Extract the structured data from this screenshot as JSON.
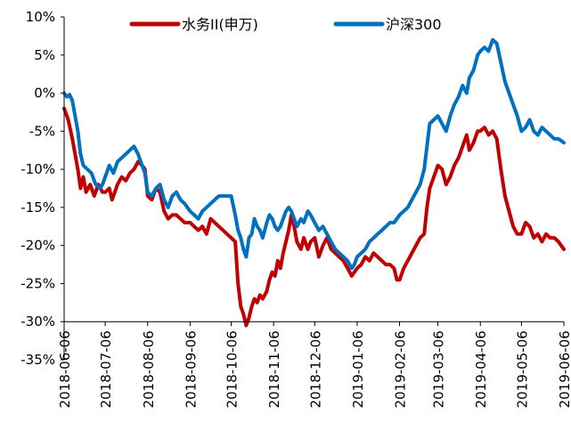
{
  "chart_data": {
    "type": "line",
    "title": "",
    "xlabel": "",
    "ylabel": "",
    "ylim": [
      -35,
      10
    ],
    "y_tick_values": [
      10,
      5,
      0,
      -5,
      -10,
      -15,
      -20,
      -25,
      -30,
      -35
    ],
    "y_tick_labels": [
      "10%",
      "5%",
      "0%",
      "-5%",
      "-10%",
      "-15%",
      "-20%",
      "-25%",
      "-30%",
      "-35%"
    ],
    "x_ticks": [
      "2018-06-06",
      "2018-07-06",
      "2018-08-06",
      "2018-09-06",
      "2018-10-06",
      "2018-11-06",
      "2018-12-06",
      "2019-01-06",
      "2019-02-06",
      "2019-03-06",
      "2019-04-06",
      "2019-05-06",
      "2019-06-06"
    ],
    "xlim": [
      "2018-06-06",
      "2019-06-06"
    ],
    "grid": false,
    "legend_position": "top",
    "series": [
      {
        "name": "水务II(申万)",
        "color": "#C00000",
        "points": [
          [
            "2018-06-06",
            -2.0
          ],
          [
            "2018-06-09",
            -3.5
          ],
          [
            "2018-06-12",
            -6.0
          ],
          [
            "2018-06-14",
            -8.0
          ],
          [
            "2018-06-16",
            -10.0
          ],
          [
            "2018-06-18",
            -12.5
          ],
          [
            "2018-06-20",
            -11.0
          ],
          [
            "2018-06-22",
            -13.0
          ],
          [
            "2018-06-25",
            -12.0
          ],
          [
            "2018-06-28",
            -13.5
          ],
          [
            "2018-07-01",
            -12.0
          ],
          [
            "2018-07-04",
            -13.0
          ],
          [
            "2018-07-06",
            -13.0
          ],
          [
            "2018-07-09",
            -12.5
          ],
          [
            "2018-07-11",
            -14.0
          ],
          [
            "2018-07-13",
            -13.0
          ],
          [
            "2018-07-15",
            -12.0
          ],
          [
            "2018-07-18",
            -11.0
          ],
          [
            "2018-07-21",
            -11.5
          ],
          [
            "2018-07-24",
            -10.5
          ],
          [
            "2018-07-27",
            -10.0
          ],
          [
            "2018-07-30",
            -9.0
          ],
          [
            "2018-08-02",
            -9.5
          ],
          [
            "2018-08-04",
            -10.0
          ],
          [
            "2018-08-06",
            -13.5
          ],
          [
            "2018-08-09",
            -14.0
          ],
          [
            "2018-08-12",
            -12.5
          ],
          [
            "2018-08-15",
            -13.0
          ],
          [
            "2018-08-18",
            -15.5
          ],
          [
            "2018-08-21",
            -16.5
          ],
          [
            "2018-08-24",
            -16.0
          ],
          [
            "2018-08-27",
            -16.0
          ],
          [
            "2018-08-30",
            -16.5
          ],
          [
            "2018-09-02",
            -17.0
          ],
          [
            "2018-09-04",
            -17.0
          ],
          [
            "2018-09-06",
            -17.0
          ],
          [
            "2018-09-09",
            -17.5
          ],
          [
            "2018-09-12",
            -18.0
          ],
          [
            "2018-09-15",
            -17.5
          ],
          [
            "2018-09-18",
            -18.5
          ],
          [
            "2018-09-21",
            -16.5
          ],
          [
            "2018-09-24",
            -17.0
          ],
          [
            "2018-09-27",
            -17.5
          ],
          [
            "2018-09-30",
            -18.0
          ],
          [
            "2018-10-03",
            -18.5
          ],
          [
            "2018-10-06",
            -19.0
          ],
          [
            "2018-10-09",
            -19.5
          ],
          [
            "2018-10-11",
            -25.0
          ],
          [
            "2018-10-13",
            -28.0
          ],
          [
            "2018-10-15",
            -29.0
          ],
          [
            "2018-10-17",
            -30.5
          ],
          [
            "2018-10-19",
            -29.5
          ],
          [
            "2018-10-21",
            -28.0
          ],
          [
            "2018-10-23",
            -27.0
          ],
          [
            "2018-10-25",
            -27.5
          ],
          [
            "2018-10-27",
            -26.5
          ],
          [
            "2018-10-29",
            -27.0
          ],
          [
            "2018-11-01",
            -26.0
          ],
          [
            "2018-11-03",
            -24.5
          ],
          [
            "2018-11-05",
            -23.5
          ],
          [
            "2018-11-07",
            -24.0
          ],
          [
            "2018-11-09",
            -22.0
          ],
          [
            "2018-11-11",
            -23.0
          ],
          [
            "2018-11-13",
            -21.0
          ],
          [
            "2018-11-15",
            -19.5
          ],
          [
            "2018-11-17",
            -18.0
          ],
          [
            "2018-11-19",
            -16.0
          ],
          [
            "2018-11-21",
            -17.5
          ],
          [
            "2018-11-23",
            -19.5
          ],
          [
            "2018-11-26",
            -20.5
          ],
          [
            "2018-11-28",
            -19.0
          ],
          [
            "2018-12-01",
            -20.5
          ],
          [
            "2018-12-03",
            -19.5
          ],
          [
            "2018-12-06",
            -19.0
          ],
          [
            "2018-12-09",
            -21.5
          ],
          [
            "2018-12-12",
            -20.0
          ],
          [
            "2018-12-15",
            -19.0
          ],
          [
            "2018-12-18",
            -20.5
          ],
          [
            "2018-12-21",
            -21.0
          ],
          [
            "2018-12-24",
            -21.5
          ],
          [
            "2018-12-27",
            -22.0
          ],
          [
            "2018-12-30",
            -23.0
          ],
          [
            "2019-01-02",
            -24.0
          ],
          [
            "2019-01-04",
            -23.5
          ],
          [
            "2019-01-06",
            -23.0
          ],
          [
            "2019-01-09",
            -22.5
          ],
          [
            "2019-01-12",
            -21.5
          ],
          [
            "2019-01-15",
            -22.0
          ],
          [
            "2019-01-18",
            -21.0
          ],
          [
            "2019-01-21",
            -21.5
          ],
          [
            "2019-01-24",
            -22.0
          ],
          [
            "2019-01-27",
            -22.5
          ],
          [
            "2019-01-30",
            -22.5
          ],
          [
            "2019-02-02",
            -23.0
          ],
          [
            "2019-02-04",
            -24.5
          ],
          [
            "2019-02-06",
            -24.5
          ],
          [
            "2019-02-09",
            -23.0
          ],
          [
            "2019-02-12",
            -22.0
          ],
          [
            "2019-02-15",
            -21.0
          ],
          [
            "2019-02-18",
            -20.0
          ],
          [
            "2019-02-21",
            -19.0
          ],
          [
            "2019-02-24",
            -18.5
          ],
          [
            "2019-02-26",
            -15.0
          ],
          [
            "2019-02-28",
            -12.5
          ],
          [
            "2019-03-03",
            -11.0
          ],
          [
            "2019-03-06",
            -9.5
          ],
          [
            "2019-03-09",
            -10.0
          ],
          [
            "2019-03-12",
            -12.0
          ],
          [
            "2019-03-15",
            -11.0
          ],
          [
            "2019-03-18",
            -9.5
          ],
          [
            "2019-03-21",
            -8.5
          ],
          [
            "2019-03-24",
            -7.0
          ],
          [
            "2019-03-27",
            -5.5
          ],
          [
            "2019-03-29",
            -7.5
          ],
          [
            "2019-04-01",
            -6.5
          ],
          [
            "2019-04-04",
            -5.0
          ],
          [
            "2019-04-06",
            -5.0
          ],
          [
            "2019-04-09",
            -4.5
          ],
          [
            "2019-04-12",
            -5.5
          ],
          [
            "2019-04-15",
            -5.0
          ],
          [
            "2019-04-18",
            -6.0
          ],
          [
            "2019-04-21",
            -10.0
          ],
          [
            "2019-04-24",
            -13.5
          ],
          [
            "2019-04-27",
            -15.5
          ],
          [
            "2019-04-30",
            -17.5
          ],
          [
            "2019-05-03",
            -18.5
          ],
          [
            "2019-05-06",
            -18.5
          ],
          [
            "2019-05-09",
            -17.0
          ],
          [
            "2019-05-12",
            -17.5
          ],
          [
            "2019-05-15",
            -19.0
          ],
          [
            "2019-05-18",
            -18.5
          ],
          [
            "2019-05-21",
            -19.5
          ],
          [
            "2019-05-24",
            -18.5
          ],
          [
            "2019-05-27",
            -19.0
          ],
          [
            "2019-05-30",
            -19.0
          ],
          [
            "2019-06-02",
            -19.5
          ],
          [
            "2019-06-06",
            -20.5
          ]
        ]
      },
      {
        "name": "沪深300",
        "color": "#0070C0",
        "points": [
          [
            "2018-06-06",
            0.0
          ],
          [
            "2018-06-08",
            -0.5
          ],
          [
            "2018-06-10",
            -0.2
          ],
          [
            "2018-06-12",
            -1.0
          ],
          [
            "2018-06-14",
            -3.0
          ],
          [
            "2018-06-16",
            -5.0
          ],
          [
            "2018-06-18",
            -8.0
          ],
          [
            "2018-06-20",
            -9.5
          ],
          [
            "2018-06-23",
            -10.0
          ],
          [
            "2018-06-26",
            -10.5
          ],
          [
            "2018-06-29",
            -12.0
          ],
          [
            "2018-07-02",
            -12.5
          ],
          [
            "2018-07-04",
            -12.0
          ],
          [
            "2018-07-06",
            -11.0
          ],
          [
            "2018-07-09",
            -9.5
          ],
          [
            "2018-07-12",
            -10.5
          ],
          [
            "2018-07-15",
            -9.0
          ],
          [
            "2018-07-18",
            -8.5
          ],
          [
            "2018-07-21",
            -8.0
          ],
          [
            "2018-07-24",
            -7.5
          ],
          [
            "2018-07-27",
            -7.0
          ],
          [
            "2018-07-30",
            -8.0
          ],
          [
            "2018-08-02",
            -9.5
          ],
          [
            "2018-08-04",
            -10.5
          ],
          [
            "2018-08-06",
            -13.0
          ],
          [
            "2018-08-09",
            -13.5
          ],
          [
            "2018-08-12",
            -12.5
          ],
          [
            "2018-08-15",
            -12.0
          ],
          [
            "2018-08-18",
            -14.0
          ],
          [
            "2018-08-21",
            -15.0
          ],
          [
            "2018-08-24",
            -13.5
          ],
          [
            "2018-08-27",
            -13.0
          ],
          [
            "2018-08-30",
            -14.0
          ],
          [
            "2018-09-02",
            -14.5
          ],
          [
            "2018-09-04",
            -15.0
          ],
          [
            "2018-09-06",
            -15.5
          ],
          [
            "2018-09-09",
            -16.0
          ],
          [
            "2018-09-12",
            -16.5
          ],
          [
            "2018-09-15",
            -15.5
          ],
          [
            "2018-09-18",
            -15.0
          ],
          [
            "2018-09-21",
            -14.5
          ],
          [
            "2018-09-24",
            -14.0
          ],
          [
            "2018-09-27",
            -13.5
          ],
          [
            "2018-09-30",
            -13.5
          ],
          [
            "2018-10-03",
            -13.5
          ],
          [
            "2018-10-06",
            -13.5
          ],
          [
            "2018-10-09",
            -16.0
          ],
          [
            "2018-10-11",
            -18.0
          ],
          [
            "2018-10-13",
            -19.0
          ],
          [
            "2018-10-15",
            -20.5
          ],
          [
            "2018-10-17",
            -21.5
          ],
          [
            "2018-10-19",
            -19.0
          ],
          [
            "2018-10-21",
            -18.5
          ],
          [
            "2018-10-23",
            -16.5
          ],
          [
            "2018-10-25",
            -17.5
          ],
          [
            "2018-10-27",
            -18.0
          ],
          [
            "2018-10-29",
            -19.0
          ],
          [
            "2018-11-01",
            -17.0
          ],
          [
            "2018-11-03",
            -16.0
          ],
          [
            "2018-11-05",
            -16.5
          ],
          [
            "2018-11-07",
            -17.5
          ],
          [
            "2018-11-09",
            -18.0
          ],
          [
            "2018-11-11",
            -17.5
          ],
          [
            "2018-11-13",
            -16.5
          ],
          [
            "2018-11-15",
            -15.5
          ],
          [
            "2018-11-17",
            -15.0
          ],
          [
            "2018-11-19",
            -15.5
          ],
          [
            "2018-11-21",
            -16.5
          ],
          [
            "2018-11-23",
            -17.5
          ],
          [
            "2018-11-26",
            -16.5
          ],
          [
            "2018-11-28",
            -17.0
          ],
          [
            "2018-12-01",
            -15.5
          ],
          [
            "2018-12-03",
            -16.0
          ],
          [
            "2018-12-06",
            -17.0
          ],
          [
            "2018-12-09",
            -18.0
          ],
          [
            "2018-12-12",
            -17.5
          ],
          [
            "2018-12-15",
            -18.5
          ],
          [
            "2018-12-18",
            -19.5
          ],
          [
            "2018-12-21",
            -20.5
          ],
          [
            "2018-12-24",
            -21.0
          ],
          [
            "2018-12-27",
            -21.5
          ],
          [
            "2018-12-30",
            -22.0
          ],
          [
            "2019-01-02",
            -23.0
          ],
          [
            "2019-01-04",
            -22.5
          ],
          [
            "2019-01-06",
            -21.5
          ],
          [
            "2019-01-09",
            -21.0
          ],
          [
            "2019-01-12",
            -20.5
          ],
          [
            "2019-01-15",
            -19.5
          ],
          [
            "2019-01-18",
            -19.0
          ],
          [
            "2019-01-21",
            -18.5
          ],
          [
            "2019-01-24",
            -18.0
          ],
          [
            "2019-01-27",
            -17.5
          ],
          [
            "2019-01-30",
            -17.0
          ],
          [
            "2019-02-02",
            -17.0
          ],
          [
            "2019-02-04",
            -16.5
          ],
          [
            "2019-02-06",
            -16.0
          ],
          [
            "2019-02-09",
            -15.5
          ],
          [
            "2019-02-12",
            -15.0
          ],
          [
            "2019-02-15",
            -14.0
          ],
          [
            "2019-02-18",
            -13.0
          ],
          [
            "2019-02-21",
            -12.0
          ],
          [
            "2019-02-24",
            -10.0
          ],
          [
            "2019-02-26",
            -7.0
          ],
          [
            "2019-02-28",
            -4.0
          ],
          [
            "2019-03-03",
            -3.5
          ],
          [
            "2019-03-06",
            -3.0
          ],
          [
            "2019-03-09",
            -4.0
          ],
          [
            "2019-03-12",
            -5.0
          ],
          [
            "2019-03-15",
            -3.0
          ],
          [
            "2019-03-18",
            -1.5
          ],
          [
            "2019-03-21",
            -0.5
          ],
          [
            "2019-03-24",
            1.0
          ],
          [
            "2019-03-27",
            0.0
          ],
          [
            "2019-03-29",
            2.0
          ],
          [
            "2019-04-01",
            3.0
          ],
          [
            "2019-04-04",
            5.0
          ],
          [
            "2019-04-06",
            5.5
          ],
          [
            "2019-04-09",
            6.0
          ],
          [
            "2019-04-12",
            5.5
          ],
          [
            "2019-04-15",
            7.0
          ],
          [
            "2019-04-18",
            6.5
          ],
          [
            "2019-04-21",
            4.0
          ],
          [
            "2019-04-24",
            1.5
          ],
          [
            "2019-04-27",
            0.0
          ],
          [
            "2019-04-30",
            -1.5
          ],
          [
            "2019-05-03",
            -3.0
          ],
          [
            "2019-05-06",
            -5.0
          ],
          [
            "2019-05-09",
            -4.5
          ],
          [
            "2019-05-12",
            -3.5
          ],
          [
            "2019-05-15",
            -5.0
          ],
          [
            "2019-05-18",
            -5.5
          ],
          [
            "2019-05-21",
            -4.5
          ],
          [
            "2019-05-24",
            -5.0
          ],
          [
            "2019-05-27",
            -5.5
          ],
          [
            "2019-05-30",
            -6.0
          ],
          [
            "2019-06-02",
            -6.0
          ],
          [
            "2019-06-06",
            -6.5
          ]
        ]
      }
    ]
  }
}
